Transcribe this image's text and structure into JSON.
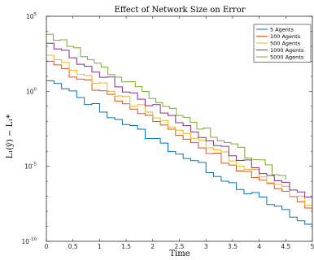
{
  "chart_data": {
    "type": "line",
    "title": "Effect of Network Size on Error",
    "xlabel": "Time",
    "ylabel": "L₁(ȳ) − L₁*",
    "xlim": [
      0,
      5
    ],
    "ylim_log10": [
      -10,
      5
    ],
    "yscale": "log",
    "x_ticks": [
      0,
      0.5,
      1,
      1.5,
      2,
      2.5,
      3,
      3.5,
      4,
      4.5,
      5
    ],
    "x_tick_labels": [
      "0",
      "0.5",
      "1",
      "1.5",
      "2",
      "2.5",
      "3",
      "3.5",
      "4",
      "4.5",
      "5"
    ],
    "y_ticks_log10": [
      -10,
      -5,
      0,
      5
    ],
    "y_tick_labels": [
      {
        "base": "10",
        "exp": "-10"
      },
      {
        "base": "10",
        "exp": "-5"
      },
      {
        "base": "10",
        "exp": "0"
      },
      {
        "base": "10",
        "exp": "5"
      }
    ],
    "legend_position": "top-right",
    "grid": false,
    "series": [
      {
        "name": "5 Agents",
        "color": "#0072BD",
        "start": {
          "x": 0,
          "y_log10": 0.7
        },
        "end": {
          "x": 5,
          "y_log10": -9.2
        }
      },
      {
        "name": "100 Agents",
        "color": "#D95319",
        "start": {
          "x": 0,
          "y_log10": 2.0
        },
        "end": {
          "x": 5,
          "y_log10": -8.0
        }
      },
      {
        "name": "500 Agents",
        "color": "#EDB120",
        "start": {
          "x": 0,
          "y_log10": 2.4
        },
        "end": {
          "x": 5,
          "y_log10": -7.7
        }
      },
      {
        "name": "1000 Agents",
        "color": "#7E2F8E",
        "start": {
          "x": 0,
          "y_log10": 3.2
        },
        "end": {
          "x": 5,
          "y_log10": -7.5
        }
      },
      {
        "name": "5000 Agents",
        "color": "#77AC30",
        "start": {
          "x": 0,
          "y_log10": 3.8
        },
        "end": {
          "x": 4.5,
          "y_log10": -5.9
        }
      }
    ]
  }
}
